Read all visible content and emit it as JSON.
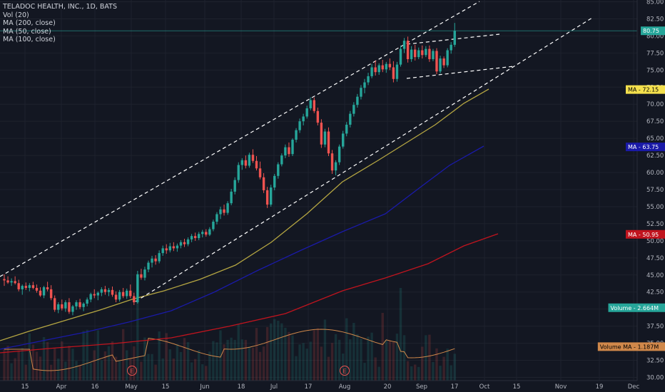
{
  "legend": {
    "title": "TELADOC HEALTH, INC., 1D, BATS",
    "vol": "Vol (20)",
    "ma200": "MA (200, close)",
    "ma50": "MA (50, close)",
    "ma100": "MA (100, close)"
  },
  "colors": {
    "background": "#131722",
    "grid": "#1e222d",
    "up": "#26a69a",
    "down": "#ef5350",
    "ma_yellow": "#b5a642",
    "ma_blue": "#1a1aa8",
    "ma_red": "#c0141e",
    "vol_ma": "#d0884a",
    "last_price": "#26a69a"
  },
  "chart_data": {
    "type": "candlestick",
    "y_axis": {
      "min": 30,
      "max": 85,
      "ticks": [
        "30.00",
        "32.50",
        "35.00",
        "37.50",
        "40.00",
        "42.50",
        "45.00",
        "47.50",
        "50.00",
        "52.50",
        "55.00",
        "57.50",
        "60.00",
        "62.50",
        "65.00",
        "67.50",
        "70.00",
        "72.50",
        "75.00",
        "77.50",
        "80.00",
        "82.50",
        "85.00"
      ]
    },
    "x_axis": {
      "ticks": [
        "15",
        "Apr",
        "16",
        "May",
        "15",
        "Jun",
        "18",
        "Jul",
        "17",
        "Aug",
        "20",
        "Sep",
        "17",
        "Oct",
        "15",
        "Nov",
        "19",
        "Dec"
      ]
    },
    "price_tags": [
      {
        "label": "80.75",
        "value": 80.75,
        "bg": "#26a69a",
        "fg": "#ffffff"
      },
      {
        "label": "MA",
        "value2": "72.15",
        "value": 72.15,
        "bg": "#f4e04d",
        "fg": "#000000"
      },
      {
        "label": "MA",
        "value2": "63.75",
        "value": 63.75,
        "bg": "#1a1aa8",
        "fg": "#ffffff"
      },
      {
        "label": "MA",
        "value2": "50.95",
        "value": 50.95,
        "bg": "#c0141e",
        "fg": "#ffffff"
      },
      {
        "label": "Volume",
        "value2": "2.664M",
        "value": 40.2,
        "bg": "#26a69a",
        "fg": "#ffffff"
      },
      {
        "label": "Volume MA",
        "value2": "1.187M",
        "value": 34.5,
        "bg": "#d0884a",
        "fg": "#000000"
      }
    ],
    "earnings_markers": [
      {
        "label": "E",
        "day": 36
      },
      {
        "label": "E",
        "day": 109
      }
    ],
    "candles": [
      {
        "o": 44.4,
        "h": 45.1,
        "l": 43.4,
        "c": 44.2
      },
      {
        "o": 44.2,
        "h": 44.8,
        "l": 43.7,
        "c": 43.9
      },
      {
        "o": 43.9,
        "h": 44.5,
        "l": 43.4,
        "c": 44.1
      },
      {
        "o": 44.1,
        "h": 44.8,
        "l": 43.6,
        "c": 43.8
      },
      {
        "o": 43.8,
        "h": 44.3,
        "l": 42.6,
        "c": 42.9
      },
      {
        "o": 42.9,
        "h": 43.6,
        "l": 42.1,
        "c": 43.4
      },
      {
        "o": 43.4,
        "h": 43.9,
        "l": 42.8,
        "c": 43.1
      },
      {
        "o": 43.1,
        "h": 43.8,
        "l": 42.6,
        "c": 43.5
      },
      {
        "o": 43.5,
        "h": 44.0,
        "l": 42.9,
        "c": 43.1
      },
      {
        "o": 43.1,
        "h": 43.6,
        "l": 42.4,
        "c": 42.7
      },
      {
        "o": 42.7,
        "h": 43.2,
        "l": 41.8,
        "c": 42.0
      },
      {
        "o": 42.0,
        "h": 43.4,
        "l": 41.6,
        "c": 43.2
      },
      {
        "o": 43.2,
        "h": 44.0,
        "l": 42.6,
        "c": 42.9
      },
      {
        "o": 42.9,
        "h": 43.5,
        "l": 41.3,
        "c": 41.6
      },
      {
        "o": 41.6,
        "h": 42.0,
        "l": 39.6,
        "c": 39.9
      },
      {
        "o": 39.9,
        "h": 41.0,
        "l": 39.4,
        "c": 40.7
      },
      {
        "o": 40.7,
        "h": 41.4,
        "l": 39.8,
        "c": 40.1
      },
      {
        "o": 40.1,
        "h": 41.3,
        "l": 39.6,
        "c": 41.0
      },
      {
        "o": 41.0,
        "h": 41.6,
        "l": 39.3,
        "c": 39.6
      },
      {
        "o": 39.6,
        "h": 40.6,
        "l": 39.1,
        "c": 40.4
      },
      {
        "o": 40.4,
        "h": 41.3,
        "l": 39.9,
        "c": 41.0
      },
      {
        "o": 41.0,
        "h": 41.5,
        "l": 40.0,
        "c": 40.3
      },
      {
        "o": 40.3,
        "h": 41.0,
        "l": 39.7,
        "c": 40.8
      },
      {
        "o": 40.8,
        "h": 41.7,
        "l": 40.4,
        "c": 41.4
      },
      {
        "o": 41.4,
        "h": 42.4,
        "l": 41.0,
        "c": 42.2
      },
      {
        "o": 42.2,
        "h": 42.9,
        "l": 41.6,
        "c": 42.0
      },
      {
        "o": 42.0,
        "h": 42.6,
        "l": 41.3,
        "c": 42.4
      },
      {
        "o": 42.4,
        "h": 43.2,
        "l": 41.9,
        "c": 42.9
      },
      {
        "o": 42.9,
        "h": 43.4,
        "l": 42.1,
        "c": 42.5
      },
      {
        "o": 42.5,
        "h": 43.1,
        "l": 41.9,
        "c": 42.8
      },
      {
        "o": 42.8,
        "h": 43.3,
        "l": 41.8,
        "c": 42.1
      },
      {
        "o": 42.1,
        "h": 42.6,
        "l": 41.0,
        "c": 41.4
      },
      {
        "o": 41.4,
        "h": 42.8,
        "l": 41.1,
        "c": 42.5
      },
      {
        "o": 42.5,
        "h": 43.1,
        "l": 41.6,
        "c": 41.9
      },
      {
        "o": 41.9,
        "h": 43.0,
        "l": 41.5,
        "c": 42.7
      },
      {
        "o": 42.7,
        "h": 43.6,
        "l": 41.6,
        "c": 41.9
      },
      {
        "o": 41.9,
        "h": 42.4,
        "l": 40.6,
        "c": 41.0
      },
      {
        "o": 41.0,
        "h": 45.6,
        "l": 40.8,
        "c": 45.1
      },
      {
        "o": 45.1,
        "h": 45.9,
        "l": 44.3,
        "c": 44.6
      },
      {
        "o": 44.6,
        "h": 46.2,
        "l": 44.2,
        "c": 45.8
      },
      {
        "o": 45.8,
        "h": 47.1,
        "l": 45.4,
        "c": 46.8
      },
      {
        "o": 46.8,
        "h": 47.8,
        "l": 46.1,
        "c": 47.4
      },
      {
        "o": 47.4,
        "h": 47.9,
        "l": 46.5,
        "c": 47.0
      },
      {
        "o": 47.0,
        "h": 48.6,
        "l": 46.7,
        "c": 48.2
      },
      {
        "o": 48.2,
        "h": 49.3,
        "l": 47.8,
        "c": 48.9
      },
      {
        "o": 48.9,
        "h": 49.5,
        "l": 48.1,
        "c": 48.6
      },
      {
        "o": 48.6,
        "h": 49.7,
        "l": 48.3,
        "c": 49.2
      },
      {
        "o": 49.2,
        "h": 49.8,
        "l": 48.5,
        "c": 48.9
      },
      {
        "o": 48.9,
        "h": 49.6,
        "l": 48.4,
        "c": 49.3
      },
      {
        "o": 49.3,
        "h": 50.1,
        "l": 48.9,
        "c": 49.8
      },
      {
        "o": 49.8,
        "h": 50.3,
        "l": 49.1,
        "c": 49.5
      },
      {
        "o": 49.5,
        "h": 50.5,
        "l": 49.2,
        "c": 50.2
      },
      {
        "o": 50.2,
        "h": 51.0,
        "l": 49.8,
        "c": 50.7
      },
      {
        "o": 50.7,
        "h": 51.2,
        "l": 50.0,
        "c": 50.4
      },
      {
        "o": 50.4,
        "h": 51.3,
        "l": 50.1,
        "c": 51.0
      },
      {
        "o": 51.0,
        "h": 51.6,
        "l": 50.5,
        "c": 51.3
      },
      {
        "o": 51.3,
        "h": 51.7,
        "l": 50.6,
        "c": 50.9
      },
      {
        "o": 50.9,
        "h": 52.0,
        "l": 50.7,
        "c": 51.7
      },
      {
        "o": 51.7,
        "h": 53.1,
        "l": 51.4,
        "c": 52.8
      },
      {
        "o": 52.8,
        "h": 54.2,
        "l": 52.4,
        "c": 53.9
      },
      {
        "o": 53.9,
        "h": 55.0,
        "l": 53.2,
        "c": 54.6
      },
      {
        "o": 54.6,
        "h": 55.3,
        "l": 53.7,
        "c": 54.1
      },
      {
        "o": 54.1,
        "h": 55.8,
        "l": 53.8,
        "c": 55.5
      },
      {
        "o": 55.5,
        "h": 57.6,
        "l": 55.2,
        "c": 57.2
      },
      {
        "o": 57.2,
        "h": 59.3,
        "l": 56.8,
        "c": 58.9
      },
      {
        "o": 58.9,
        "h": 61.5,
        "l": 58.5,
        "c": 61.1
      },
      {
        "o": 61.1,
        "h": 62.1,
        "l": 60.4,
        "c": 61.8
      },
      {
        "o": 61.8,
        "h": 62.5,
        "l": 60.6,
        "c": 61.0
      },
      {
        "o": 61.0,
        "h": 62.9,
        "l": 60.7,
        "c": 62.6
      },
      {
        "o": 62.6,
        "h": 63.4,
        "l": 61.4,
        "c": 61.7
      },
      {
        "o": 61.7,
        "h": 62.4,
        "l": 60.3,
        "c": 60.6
      },
      {
        "o": 60.6,
        "h": 61.6,
        "l": 59.0,
        "c": 59.3
      },
      {
        "o": 59.3,
        "h": 59.9,
        "l": 57.0,
        "c": 57.4
      },
      {
        "o": 57.4,
        "h": 57.9,
        "l": 54.8,
        "c": 55.3
      },
      {
        "o": 55.3,
        "h": 58.2,
        "l": 55.0,
        "c": 57.8
      },
      {
        "o": 57.8,
        "h": 59.8,
        "l": 57.4,
        "c": 59.5
      },
      {
        "o": 59.5,
        "h": 61.5,
        "l": 59.1,
        "c": 61.2
      },
      {
        "o": 61.2,
        "h": 62.8,
        "l": 60.9,
        "c": 62.5
      },
      {
        "o": 62.5,
        "h": 64.1,
        "l": 62.1,
        "c": 63.7
      },
      {
        "o": 63.7,
        "h": 64.4,
        "l": 62.3,
        "c": 62.7
      },
      {
        "o": 62.7,
        "h": 65.0,
        "l": 62.4,
        "c": 64.8
      },
      {
        "o": 64.8,
        "h": 66.5,
        "l": 64.4,
        "c": 66.2
      },
      {
        "o": 66.2,
        "h": 67.9,
        "l": 65.8,
        "c": 67.5
      },
      {
        "o": 67.5,
        "h": 68.6,
        "l": 66.9,
        "c": 68.2
      },
      {
        "o": 68.2,
        "h": 69.8,
        "l": 67.9,
        "c": 69.4
      },
      {
        "o": 69.4,
        "h": 71.0,
        "l": 69.1,
        "c": 70.6
      },
      {
        "o": 70.6,
        "h": 71.0,
        "l": 68.7,
        "c": 69.0
      },
      {
        "o": 69.0,
        "h": 69.5,
        "l": 66.9,
        "c": 67.3
      },
      {
        "o": 67.3,
        "h": 67.8,
        "l": 63.6,
        "c": 64.1
      },
      {
        "o": 64.1,
        "h": 66.4,
        "l": 63.7,
        "c": 66.0
      },
      {
        "o": 66.0,
        "h": 66.6,
        "l": 62.4,
        "c": 62.8
      },
      {
        "o": 62.8,
        "h": 63.3,
        "l": 59.8,
        "c": 60.3
      },
      {
        "o": 60.3,
        "h": 61.8,
        "l": 59.6,
        "c": 61.5
      },
      {
        "o": 61.5,
        "h": 64.1,
        "l": 61.1,
        "c": 63.8
      },
      {
        "o": 63.8,
        "h": 66.1,
        "l": 63.5,
        "c": 65.7
      },
      {
        "o": 65.7,
        "h": 67.4,
        "l": 65.3,
        "c": 67.0
      },
      {
        "o": 67.0,
        "h": 69.0,
        "l": 66.6,
        "c": 68.6
      },
      {
        "o": 68.6,
        "h": 70.3,
        "l": 68.2,
        "c": 69.9
      },
      {
        "o": 69.9,
        "h": 71.5,
        "l": 69.5,
        "c": 71.1
      },
      {
        "o": 71.1,
        "h": 72.8,
        "l": 70.7,
        "c": 72.4
      },
      {
        "o": 72.4,
        "h": 73.7,
        "l": 71.6,
        "c": 73.2
      },
      {
        "o": 73.2,
        "h": 74.6,
        "l": 72.8,
        "c": 74.1
      },
      {
        "o": 74.1,
        "h": 75.9,
        "l": 73.8,
        "c": 75.4
      },
      {
        "o": 75.4,
        "h": 76.4,
        "l": 74.2,
        "c": 74.7
      },
      {
        "o": 74.7,
        "h": 76.0,
        "l": 74.3,
        "c": 75.7
      },
      {
        "o": 75.7,
        "h": 76.5,
        "l": 74.7,
        "c": 75.1
      },
      {
        "o": 75.1,
        "h": 76.2,
        "l": 74.6,
        "c": 75.9
      },
      {
        "o": 75.9,
        "h": 76.7,
        "l": 75.0,
        "c": 75.4
      },
      {
        "o": 75.4,
        "h": 76.3,
        "l": 73.2,
        "c": 73.7
      },
      {
        "o": 73.7,
        "h": 76.2,
        "l": 73.3,
        "c": 75.8
      },
      {
        "o": 75.8,
        "h": 78.6,
        "l": 75.5,
        "c": 78.1
      },
      {
        "o": 78.1,
        "h": 79.7,
        "l": 77.5,
        "c": 79.3
      },
      {
        "o": 79.3,
        "h": 79.9,
        "l": 76.1,
        "c": 76.6
      },
      {
        "o": 76.6,
        "h": 78.5,
        "l": 76.2,
        "c": 78.0
      },
      {
        "o": 78.0,
        "h": 78.7,
        "l": 76.4,
        "c": 76.9
      },
      {
        "o": 76.9,
        "h": 78.3,
        "l": 76.6,
        "c": 77.9
      },
      {
        "o": 77.9,
        "h": 78.6,
        "l": 76.7,
        "c": 77.2
      },
      {
        "o": 77.2,
        "h": 78.5,
        "l": 76.9,
        "c": 78.1
      },
      {
        "o": 78.1,
        "h": 78.6,
        "l": 76.2,
        "c": 76.6
      },
      {
        "o": 76.6,
        "h": 78.1,
        "l": 76.3,
        "c": 77.8
      },
      {
        "o": 77.8,
        "h": 78.2,
        "l": 74.4,
        "c": 74.8
      },
      {
        "o": 74.8,
        "h": 77.1,
        "l": 74.5,
        "c": 76.7
      },
      {
        "o": 76.7,
        "h": 77.0,
        "l": 75.3,
        "c": 75.7
      },
      {
        "o": 75.7,
        "h": 78.2,
        "l": 75.4,
        "c": 77.9
      },
      {
        "o": 77.9,
        "h": 79.1,
        "l": 77.4,
        "c": 78.7
      },
      {
        "o": 78.7,
        "h": 81.9,
        "l": 78.4,
        "c": 80.75
      }
    ]
  }
}
